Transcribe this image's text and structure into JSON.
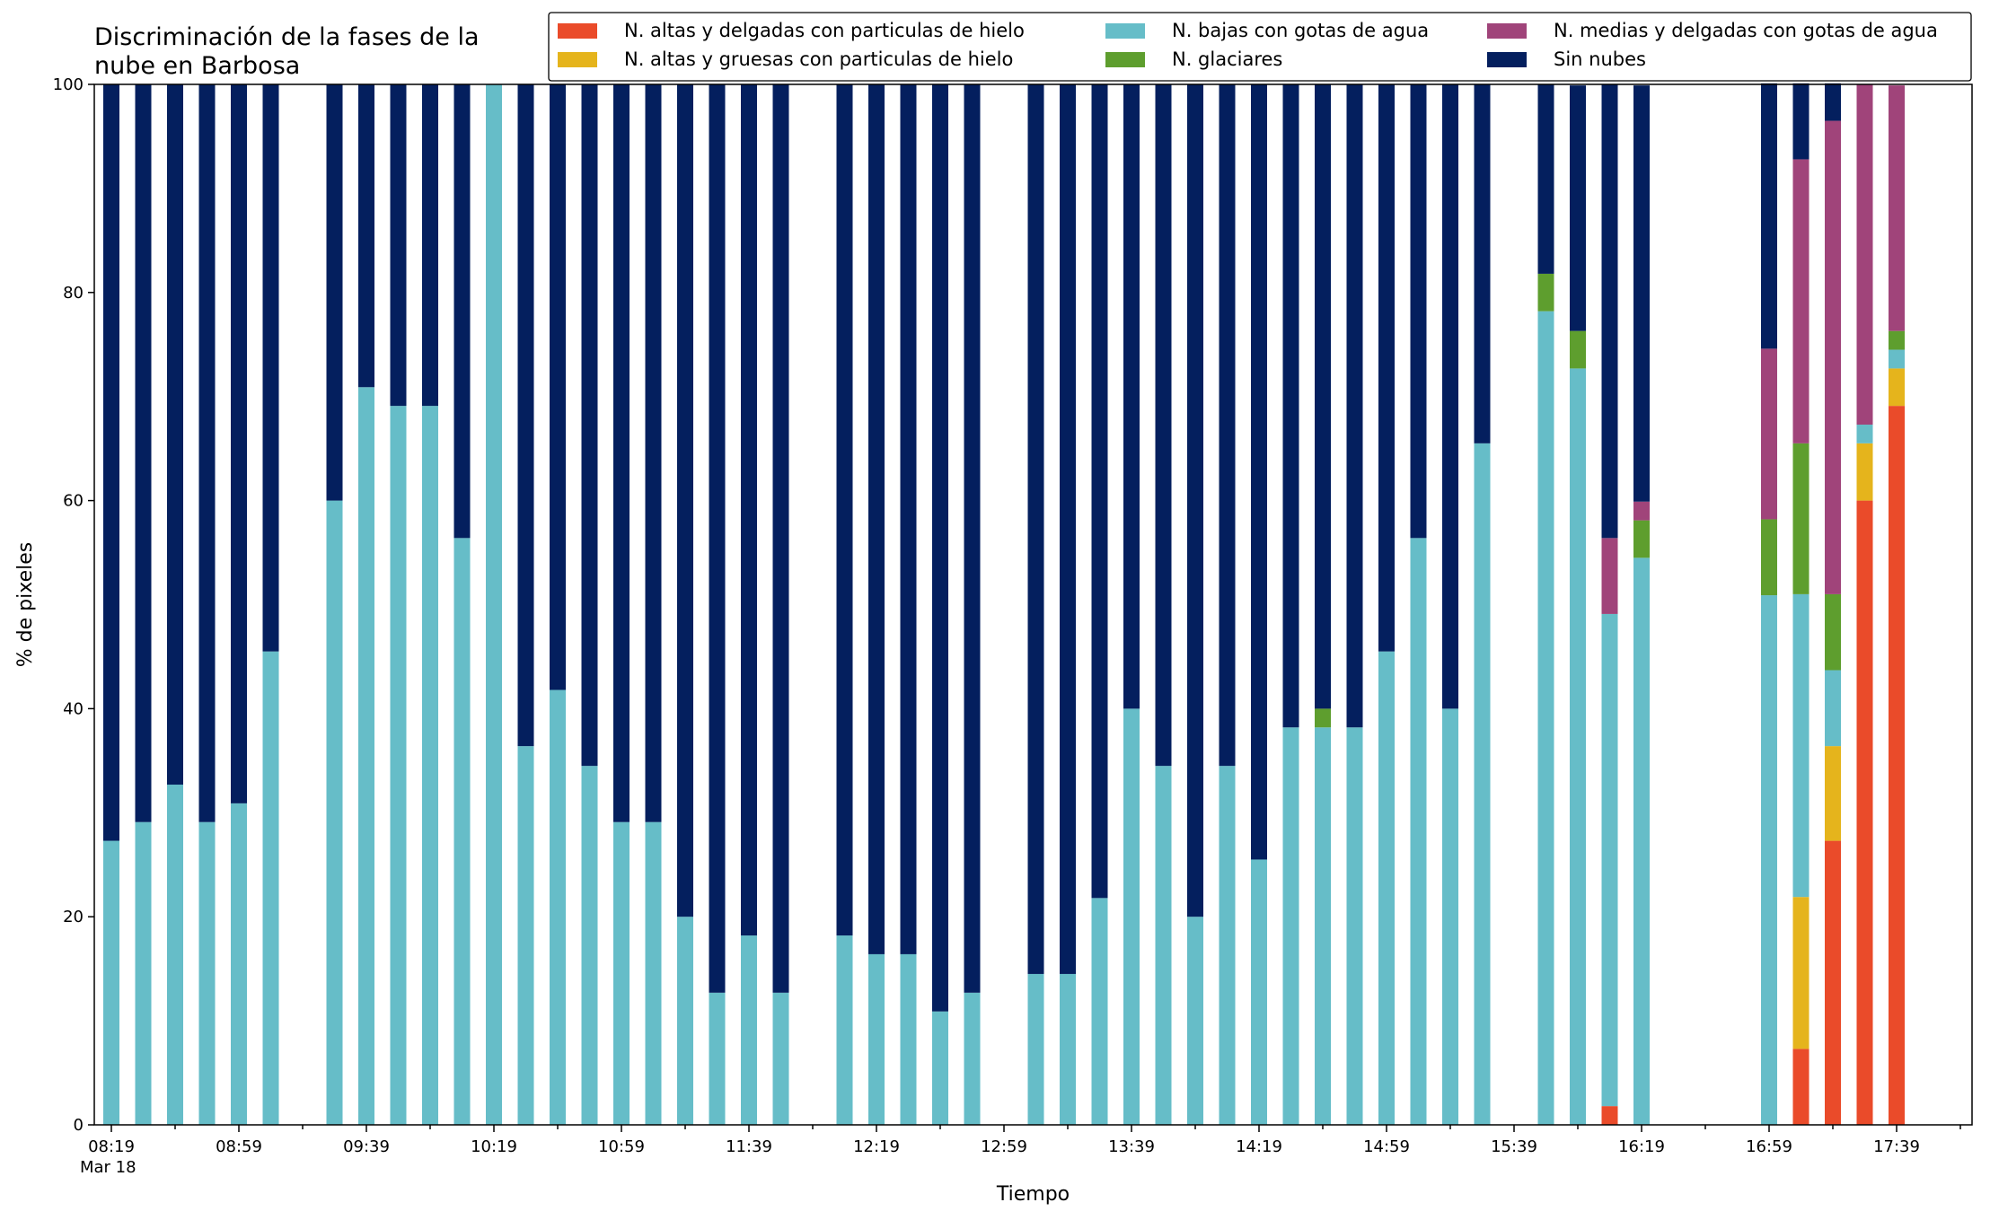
{
  "chart_data": {
    "type": "bar",
    "stacked": true,
    "title": "Discriminación de la fases de la\nnube en Barbosa",
    "xlabel": "Tiempo",
    "ylabel": "% de pixeles",
    "ylim": [
      0,
      100
    ],
    "yticks": [
      0,
      20,
      40,
      60,
      80,
      100
    ],
    "grid": false,
    "legend_position": "top-right",
    "x_tick_labels": [
      "08:19",
      "08:59",
      "09:39",
      "10:19",
      "10:59",
      "11:39",
      "12:19",
      "12:59",
      "13:39",
      "14:19",
      "14:59",
      "15:39",
      "16:19",
      "16:59",
      "17:39"
    ],
    "x_date_label": "Mar 18",
    "categories": [
      "08:19",
      "08:29",
      "08:39",
      "08:49",
      "08:59",
      "09:09",
      "09:19",
      "09:29",
      "09:39",
      "09:49",
      "09:59",
      "10:09",
      "10:19",
      "10:29",
      "10:39",
      "10:49",
      "10:59",
      "11:09",
      "11:19",
      "11:29",
      "11:39",
      "11:49",
      "11:59",
      "12:09",
      "12:19",
      "12:29",
      "12:39",
      "12:49",
      "12:59",
      "13:09",
      "13:19",
      "13:29",
      "13:39",
      "13:49",
      "13:59",
      "14:09",
      "14:19",
      "14:29",
      "14:39",
      "14:49",
      "14:59",
      "15:09",
      "15:19",
      "15:29",
      "15:39",
      "15:49",
      "15:59",
      "16:09",
      "16:19",
      "16:29",
      "16:39",
      "16:49",
      "16:59",
      "17:09",
      "17:19",
      "17:29",
      "17:39",
      "17:49",
      "17:59"
    ],
    "series": [
      {
        "name": "N. altas y delgadas con particulas de hielo",
        "color": "#ea4b2a",
        "values": [
          0,
          0,
          0,
          0,
          0,
          0,
          null,
          0,
          0,
          0,
          0,
          0,
          0,
          0,
          0,
          0,
          0,
          0,
          0,
          0,
          0,
          0,
          null,
          0,
          0,
          0,
          0,
          0,
          null,
          0,
          0,
          0,
          0,
          0,
          0,
          0,
          0,
          0,
          0,
          0,
          0,
          0,
          0,
          0,
          null,
          0,
          0,
          1.8,
          0,
          null,
          null,
          null,
          0,
          7.3,
          27.3,
          60,
          69.1,
          null,
          null
        ]
      },
      {
        "name": "N. altas y gruesas con particulas de hielo",
        "color": "#e5b41c",
        "values": [
          0,
          0,
          0,
          0,
          0,
          0,
          null,
          0,
          0,
          0,
          0,
          0,
          0,
          0,
          0,
          0,
          0,
          0,
          0,
          0,
          0,
          0,
          null,
          0,
          0,
          0,
          0,
          0,
          null,
          0,
          0,
          0,
          0,
          0,
          0,
          0,
          0,
          0,
          0,
          0,
          0,
          0,
          0,
          0,
          null,
          0,
          0,
          0,
          0,
          null,
          null,
          null,
          0,
          14.6,
          9.1,
          5.5,
          3.6,
          null,
          null
        ]
      },
      {
        "name": "N. bajas con gotas de agua",
        "color": "#66bdc8",
        "values": [
          27.3,
          29.1,
          32.7,
          29.1,
          30.9,
          45.5,
          null,
          60,
          70.9,
          69.1,
          69.1,
          56.4,
          100,
          36.4,
          41.8,
          34.5,
          29.1,
          29.1,
          20,
          12.7,
          18.2,
          12.7,
          null,
          18.2,
          16.4,
          16.4,
          10.9,
          12.7,
          null,
          14.5,
          14.5,
          21.8,
          40,
          34.5,
          20,
          34.5,
          25.5,
          38.2,
          38.2,
          38.2,
          45.5,
          56.4,
          40,
          65.5,
          null,
          78.2,
          72.7,
          47.3,
          54.5,
          null,
          null,
          null,
          50.9,
          29.1,
          7.3,
          1.8,
          1.8,
          null,
          null
        ]
      },
      {
        "name": "N. glaciares",
        "color": "#5e9e2e",
        "values": [
          0,
          0,
          0,
          0,
          0,
          0,
          null,
          0,
          0,
          0,
          0,
          0,
          0,
          0,
          0,
          0,
          0,
          0,
          0,
          0,
          0,
          0,
          null,
          0,
          0,
          0,
          0,
          0,
          null,
          0,
          0,
          0,
          0,
          0,
          0,
          0,
          0,
          0,
          1.8,
          0,
          0,
          0,
          0,
          0,
          null,
          3.6,
          3.6,
          0,
          3.6,
          null,
          null,
          null,
          7.3,
          14.5,
          7.3,
          0,
          1.8,
          null,
          null
        ]
      },
      {
        "name": "N. medias y delgadas con gotas de agua",
        "color": "#a0447a",
        "values": [
          0,
          0,
          0,
          0,
          0,
          0,
          null,
          0,
          0,
          0,
          0,
          0,
          0,
          0,
          0,
          0,
          0,
          0,
          0,
          0,
          0,
          0,
          null,
          0,
          0,
          0,
          0,
          0,
          null,
          0,
          0,
          0,
          0,
          0,
          0,
          0,
          0,
          0,
          0,
          0,
          0,
          0,
          0,
          0,
          null,
          0,
          0,
          7.3,
          1.8,
          null,
          null,
          null,
          16.4,
          27.3,
          45.5,
          32.7,
          23.6,
          null,
          null
        ]
      },
      {
        "name": "Sin nubes",
        "color": "#041f5e",
        "values": [
          72.7,
          70.9,
          67.3,
          70.9,
          69.1,
          54.5,
          null,
          40,
          29.1,
          30.9,
          30.9,
          43.6,
          0,
          63.6,
          58.2,
          65.5,
          70.9,
          70.9,
          80,
          87.3,
          81.8,
          87.3,
          null,
          81.8,
          83.6,
          83.6,
          89.1,
          87.3,
          null,
          85.5,
          85.5,
          78.2,
          60,
          65.5,
          80,
          65.5,
          74.5,
          61.8,
          60,
          61.8,
          54.5,
          43.6,
          60,
          34.5,
          null,
          18.2,
          23.6,
          43.6,
          40,
          null,
          null,
          null,
          25.5,
          7.3,
          3.6,
          0,
          0,
          null,
          null
        ]
      }
    ]
  }
}
